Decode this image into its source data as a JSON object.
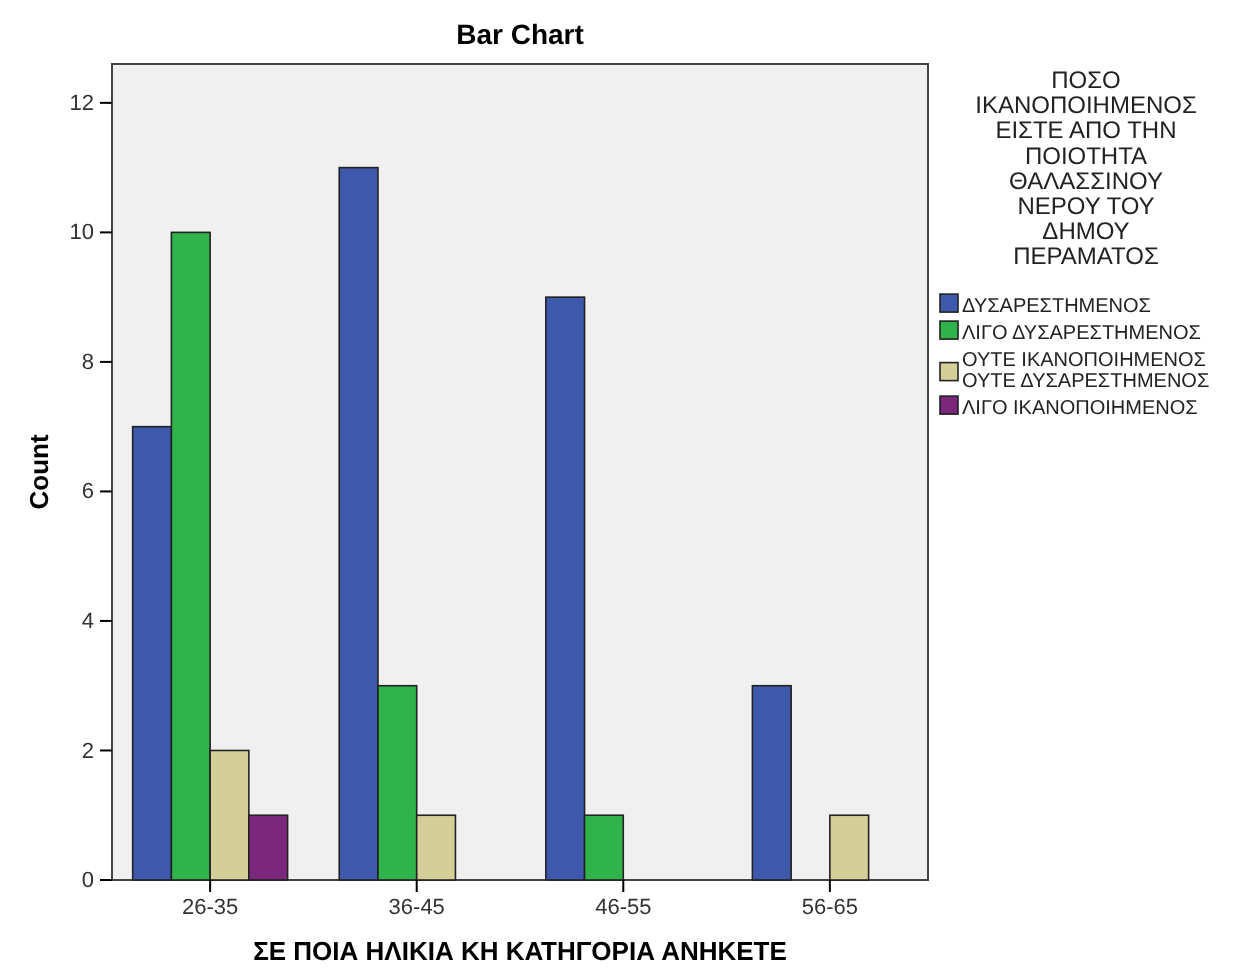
{
  "chart_data": {
    "type": "bar",
    "title": "Bar Chart",
    "xlabel": "ΣΕ ΠΟΙΑ ΗΛΙΚΙΑ ΚΗ ΚΑΤΗΓΟΡΙΑ ΑΝΗΚΕΤΕ",
    "ylabel": "Count",
    "legend_title": "ΠΟΣΟ ΙΚΑΝΟΠΟΙΗΜΕΝΟΣ ΕΙΣΤΕ ΑΠΟ ΤΗΝ ΠΟΙΟΤΗΤΑ ΘΑΛΑΣΣΙΝΟΥ ΝΕΡΟΥ ΤΟΥ ΔΗΜΟΥ ΠΕΡΑΜΑΤΟΣ",
    "legend": "right",
    "grid": false,
    "categories": [
      "26-35",
      "36-45",
      "46-55",
      "56-65"
    ],
    "series": [
      {
        "name": "ΔΥΣΑΡΕΣΤΗΜΕΝΟΣ",
        "color": "#3e58ac",
        "values": [
          7,
          11,
          9,
          3
        ]
      },
      {
        "name": "ΛΙΓΟ ΔΥΣΑΡΕΣΤΗΜΕΝΟΣ",
        "color": "#2fb34a",
        "values": [
          10,
          3,
          1,
          null
        ]
      },
      {
        "name": "ΟΥΤΕ ΙΚΑΝΟΠΟΙΗΜΕΝΟΣ ΟΥΤΕ ΔΥΣΑΡΕΣΤΗΜΕΝΟΣ",
        "color": "#d4cf98",
        "values": [
          2,
          1,
          null,
          1
        ]
      },
      {
        "name": "ΛΙΓΟ ΙΚΑΝΟΠΟΙΗΜΕΝΟΣ",
        "color": "#7b277c",
        "values": [
          1,
          null,
          null,
          null
        ]
      }
    ],
    "ylim": [
      0,
      12.6
    ],
    "yticks": [
      0,
      2,
      4,
      6,
      8,
      10,
      12
    ]
  }
}
